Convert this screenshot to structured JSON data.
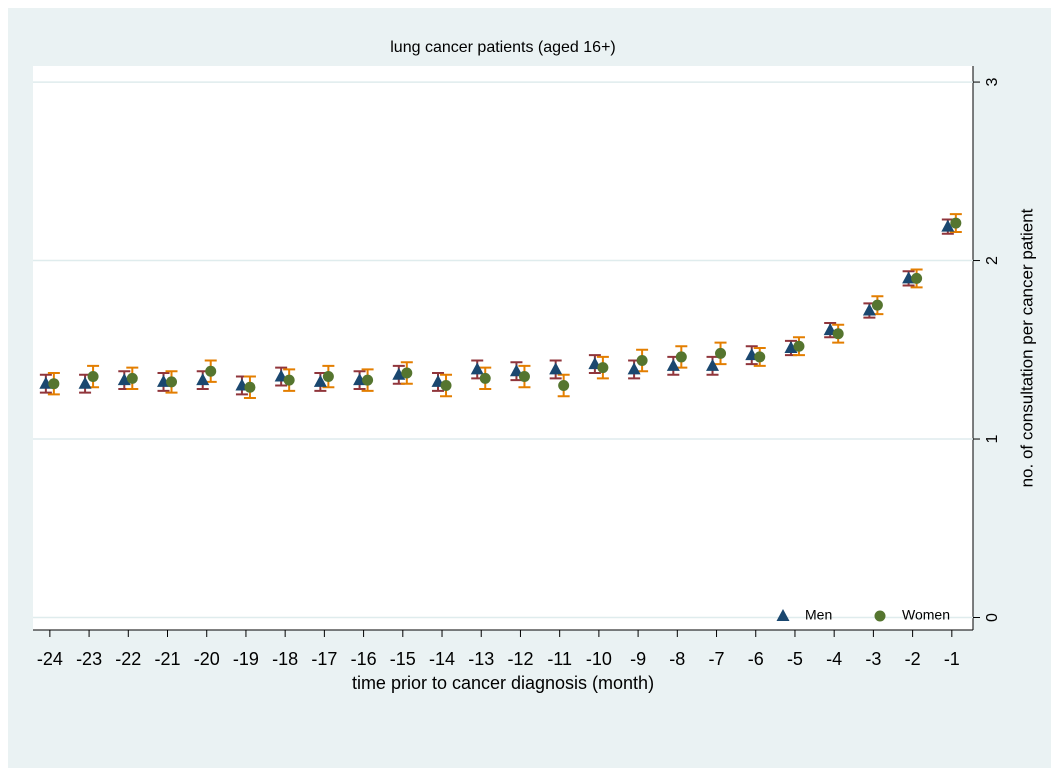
{
  "chart_data": {
    "type": "scatter",
    "title": "lung cancer patients (aged 16+)",
    "x_label": "time prior to cancer diagnosis (month)",
    "y_label": "no. of consultation per cancer patient",
    "x": [
      -24,
      -23,
      -22,
      -21,
      -20,
      -19,
      -18,
      -17,
      -16,
      -15,
      -14,
      -13,
      -12,
      -11,
      -10,
      -9,
      -8,
      -7,
      -6,
      -5,
      -4,
      -3,
      -2,
      -1
    ],
    "series": [
      {
        "name": "Men",
        "color": "#1a476f",
        "error_color": "#90353b",
        "marker": "triangle",
        "values": [
          1.31,
          1.31,
          1.33,
          1.32,
          1.33,
          1.3,
          1.35,
          1.32,
          1.33,
          1.36,
          1.32,
          1.39,
          1.38,
          1.39,
          1.42,
          1.39,
          1.41,
          1.41,
          1.47,
          1.51,
          1.61,
          1.72,
          1.9,
          2.19
        ],
        "errors": [
          0.05,
          0.05,
          0.05,
          0.05,
          0.05,
          0.05,
          0.05,
          0.05,
          0.05,
          0.05,
          0.05,
          0.05,
          0.05,
          0.05,
          0.05,
          0.05,
          0.05,
          0.05,
          0.05,
          0.04,
          0.04,
          0.04,
          0.04,
          0.04
        ]
      },
      {
        "name": "Women",
        "color": "#55752f",
        "error_color": "#e37e00",
        "marker": "circle",
        "values": [
          1.31,
          1.35,
          1.34,
          1.32,
          1.38,
          1.29,
          1.33,
          1.35,
          1.33,
          1.37,
          1.3,
          1.34,
          1.35,
          1.3,
          1.4,
          1.44,
          1.46,
          1.48,
          1.46,
          1.52,
          1.59,
          1.75,
          1.9,
          2.21
        ],
        "errors": [
          0.06,
          0.06,
          0.06,
          0.06,
          0.06,
          0.06,
          0.06,
          0.06,
          0.06,
          0.06,
          0.06,
          0.06,
          0.06,
          0.06,
          0.06,
          0.06,
          0.06,
          0.06,
          0.05,
          0.05,
          0.05,
          0.05,
          0.05,
          0.05
        ]
      }
    ],
    "xlim": [
      -24.43,
      -0.46
    ],
    "xticks": [
      -24,
      -23,
      -22,
      -21,
      -20,
      -19,
      -18,
      -17,
      -16,
      -15,
      -14,
      -13,
      -12,
      -11,
      -10,
      -9,
      -8,
      -7,
      -6,
      -5,
      -4,
      -3,
      -2,
      -1
    ],
    "ylim": [
      -0.07,
      3.09
    ],
    "yticks": [
      0,
      1,
      2,
      3
    ],
    "grid": true,
    "legend_position": "bottom-right"
  }
}
